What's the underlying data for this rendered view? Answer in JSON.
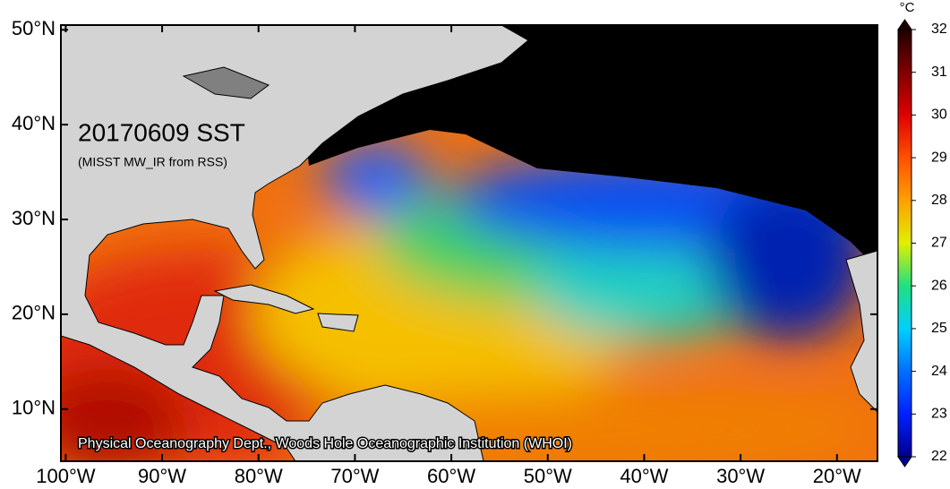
{
  "map": {
    "title": "20170609 SST",
    "subtitle": "(MISST MW_IR from RSS)",
    "credit": "Physical Oceanography Dept., Woods Hole Oceanographic Institution (WHOI)",
    "xlim": [
      -100.5,
      -15.8
    ],
    "xticks": [
      {
        "value": -100,
        "label": "100°W"
      },
      {
        "value": -90,
        "label": "90°W"
      },
      {
        "value": -80,
        "label": "80°W"
      },
      {
        "value": -70,
        "label": "70°W"
      },
      {
        "value": -60,
        "label": "60°W"
      },
      {
        "value": -50,
        "label": "50°W"
      },
      {
        "value": -40,
        "label": "40°W"
      },
      {
        "value": -30,
        "label": "30°W"
      },
      {
        "value": -20,
        "label": "20°W"
      }
    ],
    "ylim": [
      4.5,
      50.5
    ],
    "yticks": [
      {
        "value": 10,
        "label": "10°N"
      },
      {
        "value": 20,
        "label": "20°N"
      },
      {
        "value": 30,
        "label": "30°N"
      },
      {
        "value": 40,
        "label": "40°N"
      },
      {
        "value": 50,
        "label": "50°N"
      }
    ]
  },
  "colorbar": {
    "unit": "°C",
    "lim": [
      22,
      32
    ],
    "ticks": [
      22,
      23,
      24,
      25,
      26,
      27,
      28,
      29,
      30,
      31,
      32
    ]
  }
}
